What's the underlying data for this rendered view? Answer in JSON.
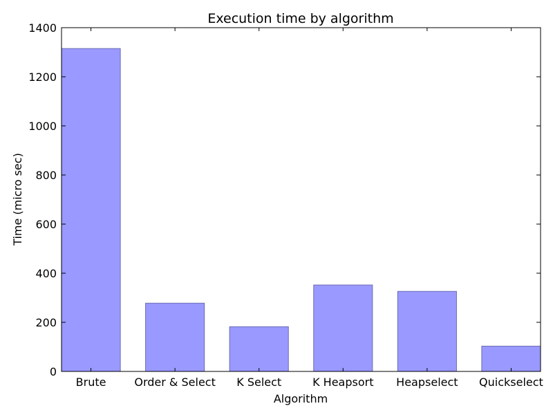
{
  "chart_data": {
    "type": "bar",
    "title": "Execution time by algorithm",
    "xlabel": "Algorithm",
    "ylabel": "Time (micro sec)",
    "categories": [
      "Brute",
      "Order & Select",
      "K Select",
      "K Heapsort",
      "Heapselect",
      "Quickselect"
    ],
    "values": [
      1315,
      278,
      182,
      352,
      326,
      103
    ],
    "ylim": [
      0,
      1400
    ],
    "yticks": [
      0,
      200,
      400,
      600,
      800,
      1000,
      1200,
      1400
    ],
    "grid": false,
    "bar_color": "#9999ff",
    "bar_edge_color": "#6b6bb3"
  }
}
